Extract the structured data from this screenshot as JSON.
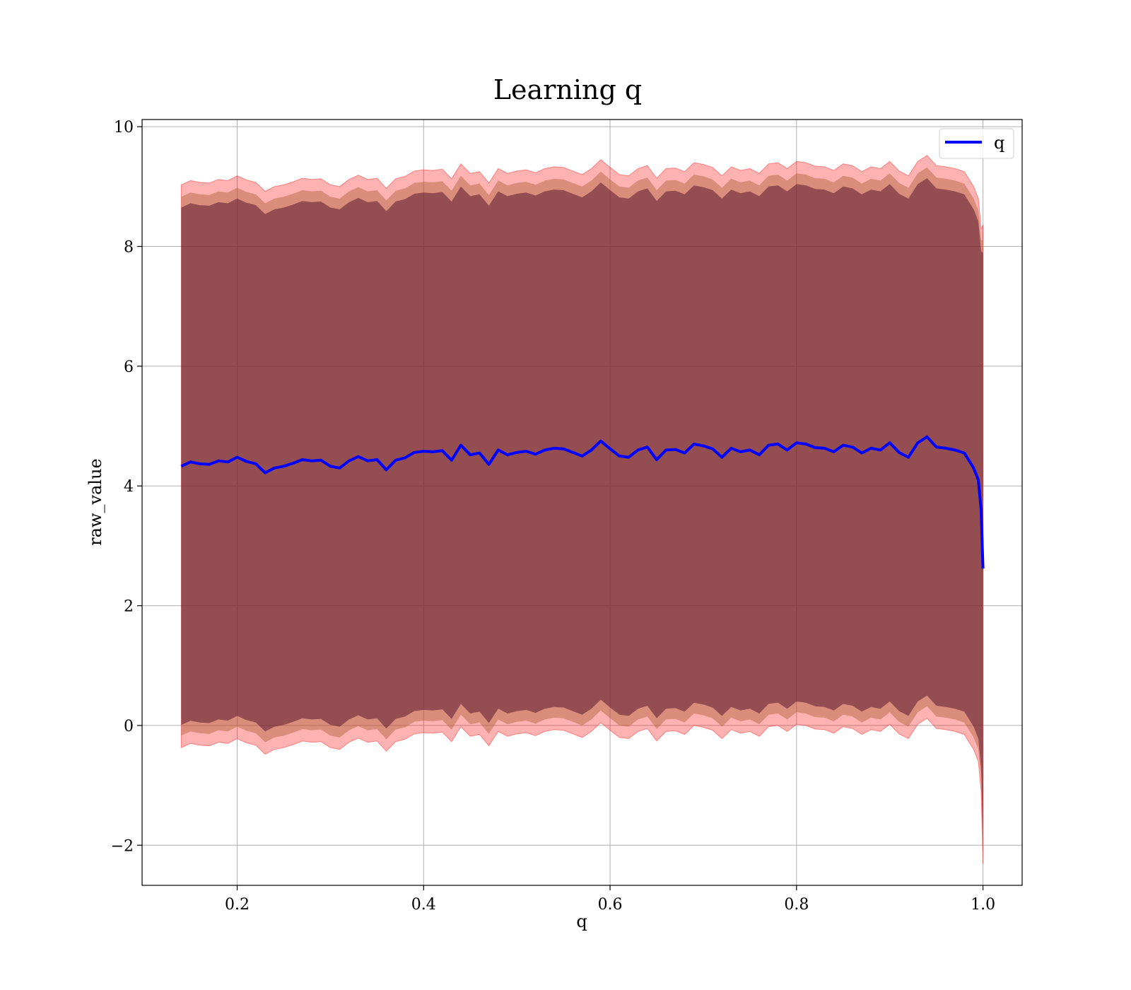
{
  "chart_data": {
    "type": "line",
    "title": "Learning q",
    "xlabel": "q",
    "ylabel": "raw_value",
    "xlim": [
      0.098,
      1.042
    ],
    "ylim": [
      -2.67,
      10.12
    ],
    "xticks": [
      0.2,
      0.4,
      0.6,
      0.8,
      1.0
    ],
    "xtick_labels": [
      "0.2",
      "0.4",
      "0.6",
      "0.8",
      "1.0"
    ],
    "yticks": [
      -2,
      0,
      2,
      4,
      6,
      8,
      10
    ],
    "ytick_labels": [
      "−2",
      "0",
      "2",
      "4",
      "6",
      "8",
      "10"
    ],
    "grid": true,
    "legend": {
      "position": "top-right",
      "entries": [
        "q"
      ]
    },
    "colors": {
      "line": "#0000ff",
      "band": "#ff0000",
      "inner_band": "#5a1a2e",
      "grid": "#b0b0b0"
    },
    "series": [
      {
        "name": "q",
        "x": [
          0.14,
          0.15,
          0.16,
          0.17,
          0.18,
          0.19,
          0.2,
          0.21,
          0.22,
          0.23,
          0.24,
          0.25,
          0.26,
          0.27,
          0.28,
          0.29,
          0.3,
          0.31,
          0.32,
          0.33,
          0.34,
          0.35,
          0.36,
          0.37,
          0.38,
          0.39,
          0.4,
          0.41,
          0.42,
          0.43,
          0.44,
          0.45,
          0.46,
          0.47,
          0.48,
          0.49,
          0.5,
          0.51,
          0.52,
          0.53,
          0.54,
          0.55,
          0.56,
          0.57,
          0.58,
          0.59,
          0.6,
          0.61,
          0.62,
          0.63,
          0.64,
          0.65,
          0.66,
          0.67,
          0.68,
          0.69,
          0.7,
          0.71,
          0.72,
          0.73,
          0.74,
          0.75,
          0.76,
          0.77,
          0.78,
          0.79,
          0.8,
          0.81,
          0.82,
          0.83,
          0.84,
          0.85,
          0.86,
          0.87,
          0.88,
          0.89,
          0.9,
          0.91,
          0.92,
          0.93,
          0.94,
          0.95,
          0.96,
          0.97,
          0.98,
          0.99,
          0.995,
          0.998,
          1.0
        ],
        "y": [
          4.33,
          4.4,
          4.37,
          4.36,
          4.42,
          4.4,
          4.48,
          4.41,
          4.37,
          4.22,
          4.3,
          4.33,
          4.38,
          4.44,
          4.42,
          4.43,
          4.33,
          4.3,
          4.42,
          4.49,
          4.42,
          4.44,
          4.27,
          4.43,
          4.47,
          4.56,
          4.58,
          4.57,
          4.59,
          4.43,
          4.68,
          4.52,
          4.55,
          4.36,
          4.6,
          4.52,
          4.56,
          4.58,
          4.53,
          4.6,
          4.63,
          4.62,
          4.56,
          4.5,
          4.6,
          4.75,
          4.62,
          4.5,
          4.48,
          4.6,
          4.65,
          4.44,
          4.6,
          4.61,
          4.55,
          4.7,
          4.67,
          4.62,
          4.48,
          4.63,
          4.57,
          4.6,
          4.52,
          4.68,
          4.7,
          4.6,
          4.72,
          4.7,
          4.64,
          4.63,
          4.57,
          4.68,
          4.65,
          4.55,
          4.63,
          4.6,
          4.72,
          4.56,
          4.48,
          4.72,
          4.82,
          4.65,
          4.63,
          4.6,
          4.55,
          4.3,
          4.1,
          3.6,
          2.62
        ]
      }
    ],
    "bands": {
      "outer_offset": 4.7,
      "middle_offset": 4.5,
      "inner_offset": 4.32
    }
  },
  "legend_label": "q"
}
